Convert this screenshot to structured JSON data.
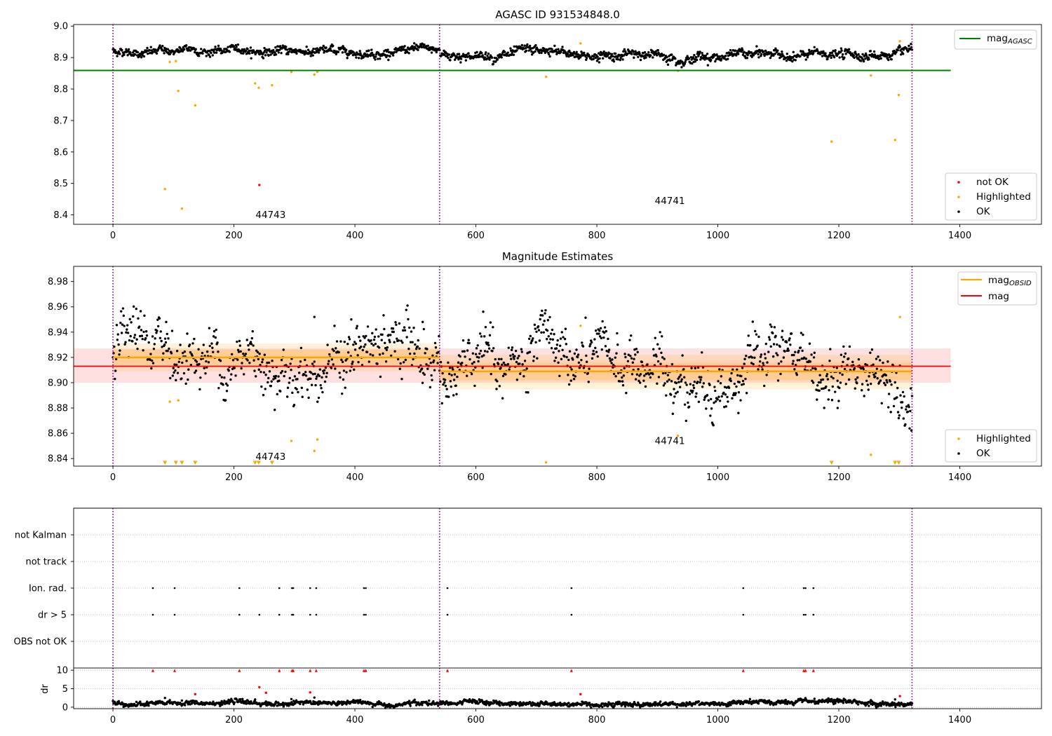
{
  "chart_data": [
    {
      "type": "scatter",
      "title": "AGASC ID 931534848.0",
      "xlim": [
        -65,
        1535
      ],
      "ylim": [
        8.37,
        9.005
      ],
      "x_ticks": [
        0,
        200,
        400,
        600,
        800,
        1000,
        1200,
        1400
      ],
      "y_ticks": [
        8.4,
        8.5,
        8.6,
        8.7,
        8.8,
        8.9,
        9.0
      ],
      "y_tick_labels": [
        "8.4",
        "8.5",
        "8.6",
        "8.7",
        "8.8",
        "8.9",
        "9.0"
      ],
      "obs_boundaries": [
        0,
        540,
        1321
      ],
      "annotations": [
        {
          "text": "44743",
          "x": 245,
          "y": 8.39
        },
        {
          "text": "44741",
          "x": 905,
          "y": 8.435
        }
      ],
      "reference_line": {
        "label": "mag",
        "label_sub": "AGASC",
        "y": 8.859,
        "x_range": [
          -65,
          1385
        ],
        "color": "#008000"
      },
      "legend_top": {
        "placement": "top-right",
        "entries": [
          {
            "label": "mag",
            "label_sub": "AGASC",
            "color": "#008000",
            "marker": "line"
          }
        ]
      },
      "legend_bottom": {
        "placement": "lower-right",
        "entries": [
          {
            "label": "not OK",
            "color": "#ff0000",
            "marker": "dot"
          },
          {
            "label": "Highlighted",
            "color": "#ffa500",
            "marker": "dot"
          },
          {
            "label": "OK",
            "color": "#000000",
            "marker": "dot"
          }
        ]
      },
      "series": [
        {
          "name": "not OK",
          "color": "#ff0000",
          "points": [
            [
              242,
              8.495
            ]
          ]
        },
        {
          "name": "Highlighted",
          "color": "#ffa500",
          "points": [
            [
              86,
              8.482
            ],
            [
              94,
              8.886
            ],
            [
              104,
              8.889
            ],
            [
              108,
              8.794
            ],
            [
              114,
              8.42
            ],
            [
              136,
              8.748
            ],
            [
              235,
              8.818
            ],
            [
              241,
              8.804
            ],
            [
              263,
              8.812
            ],
            [
              295,
              8.854
            ],
            [
              333,
              8.846
            ],
            [
              338,
              8.855
            ],
            [
              716,
              8.839
            ],
            [
              773,
              8.945
            ],
            [
              934,
              8.858
            ],
            [
              1188,
              8.633
            ],
            [
              1253,
              8.843
            ],
            [
              1293,
              8.638
            ],
            [
              1299,
              8.781
            ],
            [
              1301,
              8.952
            ]
          ]
        },
        {
          "name": "OK",
          "color": "#000000",
          "gen": {
            "segments": [
              {
                "x0": 0,
                "x1": 540,
                "base": 8.921,
                "noise": 0.0075,
                "n": 620
              },
              {
                "x0": 541,
                "x1": 1321,
                "base": 8.908,
                "noise": 0.0085,
                "n": 900
              }
            ]
          }
        }
      ]
    },
    {
      "type": "scatter",
      "title": "Magnitude Estimates",
      "xlim": [
        -65,
        1535
      ],
      "ylim": [
        8.834,
        8.992
      ],
      "x_ticks": [
        0,
        200,
        400,
        600,
        800,
        1000,
        1200,
        1400
      ],
      "y_ticks": [
        8.84,
        8.86,
        8.88,
        8.9,
        8.92,
        8.94,
        8.96,
        8.98
      ],
      "y_tick_labels": [
        "8.84",
        "8.86",
        "8.88",
        "8.90",
        "8.92",
        "8.94",
        "8.96",
        "8.98"
      ],
      "obs_boundaries": [
        0,
        540,
        1321
      ],
      "annotations": [
        {
          "text": "44743",
          "x": 245,
          "y": 8.839
        },
        {
          "text": "44741",
          "x": 905,
          "y": 8.8515
        }
      ],
      "mag": {
        "label": "mag",
        "y": 8.913,
        "band": [
          8.9,
          8.927
        ],
        "x_range": [
          -65,
          1385
        ],
        "color": "#ff0000"
      },
      "mag_obsid": {
        "label": "mag",
        "label_sub": "OBSID",
        "color": "#ffa500",
        "segments": [
          {
            "x0": 0,
            "x1": 540,
            "y": 8.92,
            "band1": [
              8.914,
              8.926
            ],
            "band2": [
              8.909,
              8.931
            ]
          },
          {
            "x0": 540,
            "x1": 1321,
            "y": 8.909,
            "band1": [
              8.902,
              8.916
            ],
            "band2": [
              8.895,
              8.922
            ]
          }
        ]
      },
      "legend_top": {
        "placement": "top-right",
        "entries": [
          {
            "label": "mag",
            "label_sub": "OBSID",
            "color": "#ffa500",
            "marker": "line"
          },
          {
            "label": "mag",
            "color": "#ff0000",
            "marker": "line"
          }
        ]
      },
      "legend_bottom": {
        "placement": "lower-right",
        "entries": [
          {
            "label": "Highlighted",
            "color": "#ffa500",
            "marker": "dot"
          },
          {
            "label": "OK",
            "color": "#000000",
            "marker": "dot"
          }
        ]
      },
      "series": [
        {
          "name": "Highlighted",
          "color": "#ffa500",
          "points": [
            [
              94,
              8.885
            ],
            [
              108,
              8.886
            ],
            [
              295,
              8.854
            ],
            [
              333,
              8.846
            ],
            [
              338,
              8.855
            ],
            [
              716,
              8.837
            ],
            [
              773,
              8.945
            ],
            [
              934,
              8.858
            ],
            [
              1253,
              8.843
            ],
            [
              1301,
              8.952
            ]
          ]
        },
        {
          "name": "below range",
          "color": "#ffa500",
          "marker": "triangle-down",
          "points": [
            [
              86,
              8.8365
            ],
            [
              104,
              8.8365
            ],
            [
              114,
              8.8365
            ],
            [
              136,
              8.8365
            ],
            [
              235,
              8.8365
            ],
            [
              241,
              8.8365
            ],
            [
              263,
              8.8365
            ],
            [
              1188,
              8.8365
            ],
            [
              1293,
              8.8365
            ],
            [
              1299,
              8.8365
            ]
          ]
        },
        {
          "name": "OK",
          "color": "#000000",
          "gen": {
            "segments": [
              {
                "x0": 0,
                "x1": 540,
                "base": 8.921,
                "noise": 0.0125,
                "n": 520
              },
              {
                "x0": 541,
                "x1": 1321,
                "base": 8.908,
                "noise": 0.012,
                "n": 780
              }
            ],
            "extra": [
              [
                88,
                8.948
              ],
              [
                333,
                8.952
              ],
              [
                394,
                8.95
              ],
              [
                512,
                8.948
              ],
              [
                1034,
                8.876
              ],
              [
                1198,
                8.88
              ]
            ]
          }
        }
      ]
    },
    {
      "type": "scatter",
      "title": "",
      "xlim": [
        -65,
        1535
      ],
      "obs_boundaries": [
        0,
        540,
        1321
      ],
      "flags": [
        "OBS not OK",
        "dr > 5",
        "Ion. rad.",
        "not track",
        "not Kalman"
      ],
      "flag_points": {
        "Ion. rad.": [
          66,
          102,
          209,
          275,
          296,
          298,
          326,
          336,
          415,
          418,
          553,
          758,
          1042,
          1142,
          1145,
          1158
        ],
        "dr > 5": [
          66,
          102,
          209,
          242,
          275,
          296,
          298,
          326,
          336,
          415,
          418,
          553,
          758,
          1042,
          1142,
          1145,
          1158
        ]
      }
    },
    {
      "type": "scatter",
      "title": "",
      "ylabel": "dr",
      "xlim": [
        -65,
        1535
      ],
      "ylim": [
        -0.4,
        10.6
      ],
      "x_ticks": [
        0,
        200,
        400,
        600,
        800,
        1000,
        1200,
        1400
      ],
      "y_ticks": [
        0,
        5,
        10
      ],
      "y_tick_labels": [
        "0",
        "5",
        "10"
      ],
      "obs_boundaries": [
        0,
        540,
        1321
      ],
      "series": [
        {
          "name": "clipped",
          "color": "#ff0000",
          "marker": "triangle-up",
          "points": [
            [
              66,
              9.9
            ],
            [
              102,
              9.9
            ],
            [
              209,
              9.9
            ],
            [
              275,
              9.9
            ],
            [
              296,
              9.9
            ],
            [
              298,
              9.9
            ],
            [
              326,
              9.9
            ],
            [
              336,
              9.9
            ],
            [
              415,
              9.9
            ],
            [
              418,
              9.9
            ],
            [
              553,
              9.9
            ],
            [
              758,
              9.9
            ],
            [
              1042,
              9.9
            ],
            [
              1142,
              9.9
            ],
            [
              1145,
              9.9
            ],
            [
              1158,
              9.9
            ]
          ]
        },
        {
          "name": "large dr",
          "color": "#ff0000",
          "points": [
            [
              136,
              3.5
            ],
            [
              242,
              5.4
            ],
            [
              253,
              3.9
            ],
            [
              326,
              4.0
            ],
            [
              773,
              3.5
            ],
            [
              1301,
              3.0
            ]
          ]
        },
        {
          "name": "OK",
          "color": "#000000",
          "gen": {
            "segments": [
              {
                "x0": 0,
                "x1": 1321,
                "base": 1.0,
                "noise": 0.35,
                "n": 1500
              }
            ],
            "extra": [
              [
                86,
                2.5
              ],
              [
                94,
                1.9
              ],
              [
                114,
                1.8
              ],
              [
                235,
                2.1
              ],
              [
                295,
                2.2
              ],
              [
                333,
                2.6
              ],
              [
                1188,
                2.2
              ],
              [
                1253,
                1.9
              ],
              [
                1293,
                2.1
              ]
            ]
          }
        }
      ]
    }
  ]
}
